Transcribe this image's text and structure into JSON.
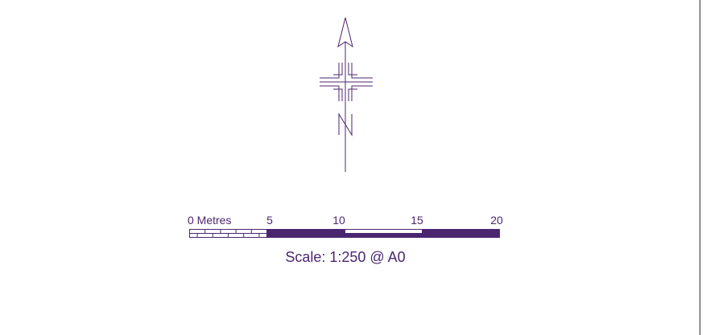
{
  "north_arrow": {
    "letter": "N"
  },
  "scale_bar": {
    "tick_labels": [
      "0 Metres",
      "5",
      "10",
      "15",
      "20"
    ],
    "scale_text": "Scale: 1:250 @ A0"
  },
  "colors": {
    "ink": "#4b2670",
    "fill": "#4b2670",
    "background": "#ffffff",
    "frame": "#666666"
  }
}
